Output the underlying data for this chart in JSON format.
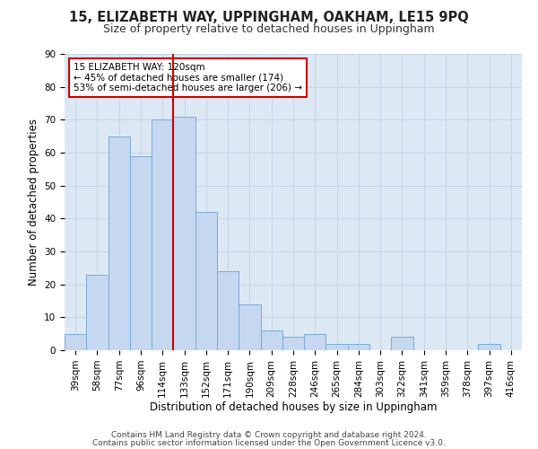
{
  "title": "15, ELIZABETH WAY, UPPINGHAM, OAKHAM, LE15 9PQ",
  "subtitle": "Size of property relative to detached houses in Uppingham",
  "xlabel": "Distribution of detached houses by size in Uppingham",
  "ylabel": "Number of detached properties",
  "categories": [
    "39sqm",
    "58sqm",
    "77sqm",
    "96sqm",
    "114sqm",
    "133sqm",
    "152sqm",
    "171sqm",
    "190sqm",
    "209sqm",
    "228sqm",
    "246sqm",
    "265sqm",
    "284sqm",
    "303sqm",
    "322sqm",
    "341sqm",
    "359sqm",
    "378sqm",
    "397sqm",
    "416sqm"
  ],
  "values": [
    5,
    23,
    65,
    59,
    70,
    71,
    42,
    24,
    14,
    6,
    4,
    5,
    2,
    2,
    0,
    4,
    0,
    0,
    0,
    2,
    0
  ],
  "bar_color": "#c5d8f0",
  "bar_edge_color": "#7aaad4",
  "vline_x_index": 4,
  "vline_color": "#cc0000",
  "annotation_text": "15 ELIZABETH WAY: 120sqm\n← 45% of detached houses are smaller (174)\n53% of semi-detached houses are larger (206) →",
  "annotation_box_color": "#ffffff",
  "annotation_box_edge": "#cc0000",
  "ylim": [
    0,
    90
  ],
  "yticks": [
    0,
    10,
    20,
    30,
    40,
    50,
    60,
    70,
    80,
    90
  ],
  "grid_color": "#c8d4e8",
  "bg_color": "#dde8f5",
  "footer1": "Contains HM Land Registry data © Crown copyright and database right 2024.",
  "footer2": "Contains public sector information licensed under the Open Government Licence v3.0.",
  "title_fontsize": 10.5,
  "subtitle_fontsize": 9,
  "tick_fontsize": 7.5,
  "label_fontsize": 8.5,
  "footer_fontsize": 6.5
}
